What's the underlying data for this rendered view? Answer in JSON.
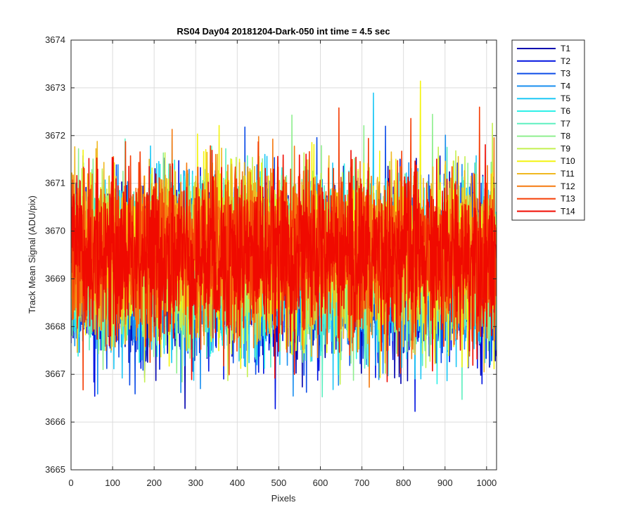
{
  "chart_data": {
    "type": "line",
    "title": "RS04 Day04 20181204-Dark-050 int time = 4.5 sec",
    "xlabel": "Pixels",
    "ylabel": "Track Mean Signal (ADU/pix)",
    "xlim": [
      0,
      1024
    ],
    "ylim": [
      3665,
      3674
    ],
    "xticks": [
      0,
      100,
      200,
      300,
      400,
      500,
      600,
      700,
      800,
      900,
      1000
    ],
    "yticks": [
      3665,
      3666,
      3667,
      3668,
      3669,
      3670,
      3671,
      3672,
      3673,
      3674
    ],
    "grid": true,
    "legend_location": "outside-right-top",
    "n_points": 1024,
    "series": [
      {
        "name": "T1",
        "color": "#0000ae",
        "mean": 3669.05,
        "spread": 0.85
      },
      {
        "name": "T2",
        "color": "#0014e1",
        "mean": 3669.1,
        "spread": 0.85
      },
      {
        "name": "T3",
        "color": "#0d4de8",
        "mean": 3669.15,
        "spread": 0.85
      },
      {
        "name": "T4",
        "color": "#1a8ff0",
        "mean": 3669.2,
        "spread": 0.85
      },
      {
        "name": "T5",
        "color": "#1fc8f5",
        "mean": 3669.25,
        "spread": 0.85
      },
      {
        "name": "T6",
        "color": "#2ff0e8",
        "mean": 3669.3,
        "spread": 0.85
      },
      {
        "name": "T7",
        "color": "#5ff0c0",
        "mean": 3669.35,
        "spread": 0.85
      },
      {
        "name": "T8",
        "color": "#8fef8f",
        "mean": 3669.4,
        "spread": 0.85
      },
      {
        "name": "T9",
        "color": "#c4f050",
        "mean": 3669.45,
        "spread": 0.85
      },
      {
        "name": "T10",
        "color": "#f4f410",
        "mean": 3669.5,
        "spread": 0.85
      },
      {
        "name": "T11",
        "color": "#f0b820",
        "mean": 3669.55,
        "spread": 0.85
      },
      {
        "name": "T12",
        "color": "#f57a10",
        "mean": 3669.55,
        "spread": 0.85
      },
      {
        "name": "T13",
        "color": "#f53d05",
        "mean": 3669.55,
        "spread": 0.85
      },
      {
        "name": "T14",
        "color": "#f00a00",
        "mean": 3669.5,
        "spread": 0.85
      }
    ]
  }
}
